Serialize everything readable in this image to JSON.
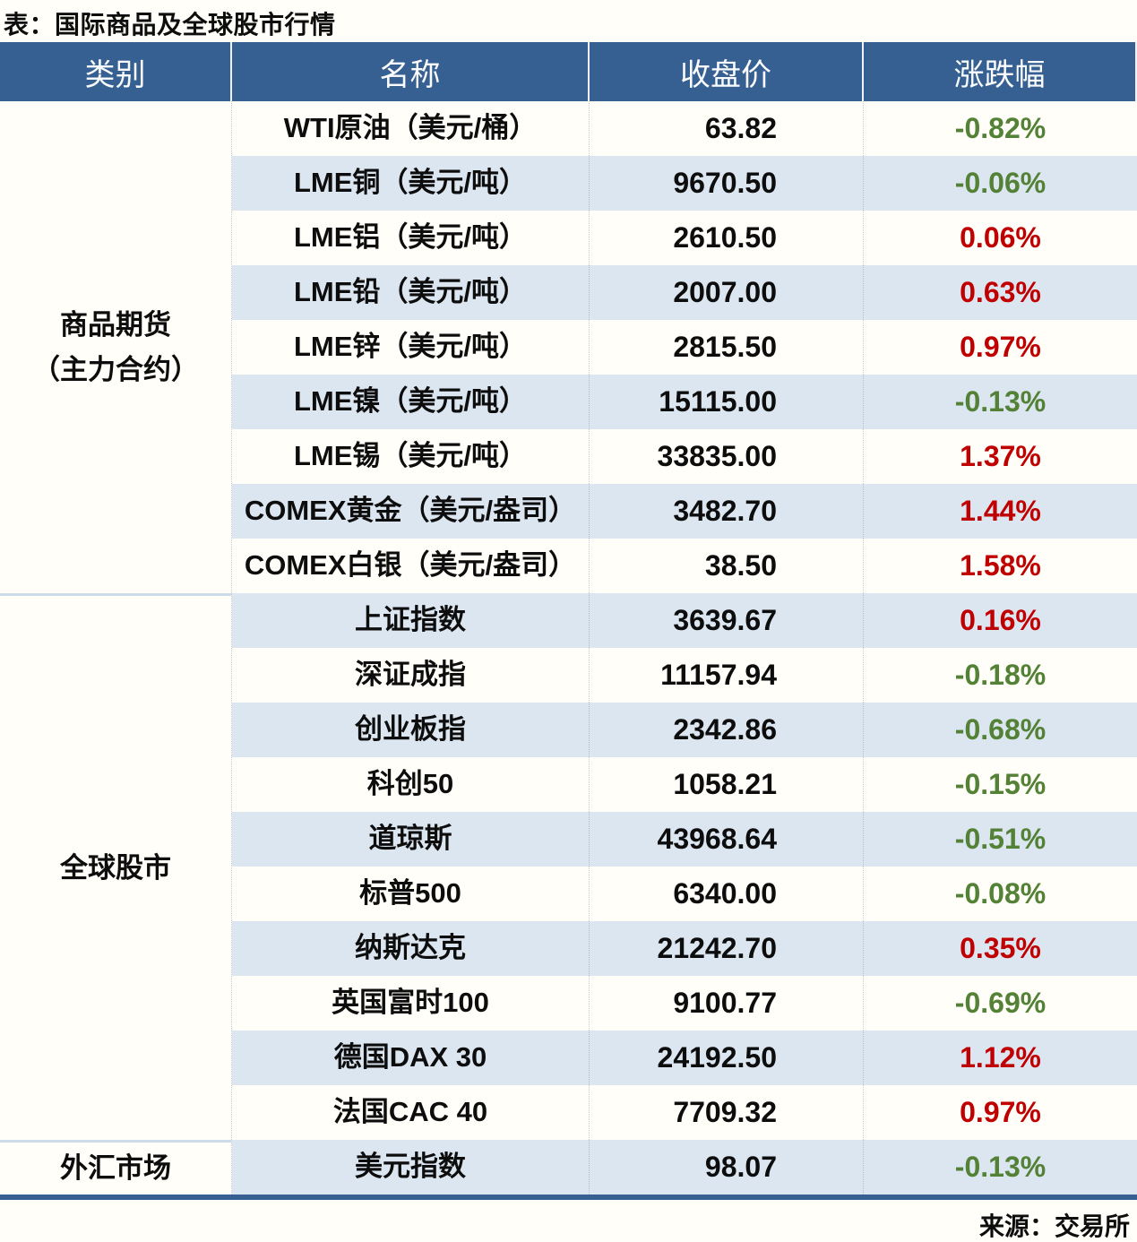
{
  "title": "表：国际商品及全球股市行情",
  "source": "来源：交易所",
  "colors": {
    "header_bg": "#376092",
    "row_alt_bg": "#dce6f1",
    "positive_red": "#c00000",
    "negative_green": "#538135",
    "bottom_rule": "#376092"
  },
  "chart_data": {
    "type": "table",
    "title": "表：国际商品及全球股市行情",
    "columns": [
      "类别",
      "名称",
      "收盘价",
      "涨跌幅"
    ],
    "sections": [
      {
        "category_lines": [
          "商品期货",
          "（主力合约）"
        ],
        "rows": [
          {
            "name": "WTI原油（美元/桶）",
            "close": "63.82",
            "change": "-0.82%"
          },
          {
            "name": "LME铜（美元/吨）",
            "close": "9670.50",
            "change": "-0.06%"
          },
          {
            "name": "LME铝（美元/吨）",
            "close": "2610.50",
            "change": "0.06%"
          },
          {
            "name": "LME铅（美元/吨）",
            "close": "2007.00",
            "change": "0.63%"
          },
          {
            "name": "LME锌（美元/吨）",
            "close": "2815.50",
            "change": "0.97%"
          },
          {
            "name": "LME镍（美元/吨）",
            "close": "15115.00",
            "change": "-0.13%"
          },
          {
            "name": "LME锡（美元/吨）",
            "close": "33835.00",
            "change": "1.37%"
          },
          {
            "name": "COMEX黄金（美元/盎司）",
            "close": "3482.70",
            "change": "1.44%"
          },
          {
            "name": "COMEX白银（美元/盎司）",
            "close": "38.50",
            "change": "1.58%"
          }
        ]
      },
      {
        "category_lines": [
          "全球股市"
        ],
        "rows": [
          {
            "name": "上证指数",
            "close": "3639.67",
            "change": "0.16%"
          },
          {
            "name": "深证成指",
            "close": "11157.94",
            "change": "-0.18%"
          },
          {
            "name": "创业板指",
            "close": "2342.86",
            "change": "-0.68%"
          },
          {
            "name": "科创50",
            "close": "1058.21",
            "change": "-0.15%"
          },
          {
            "name": "道琼斯",
            "close": "43968.64",
            "change": "-0.51%"
          },
          {
            "name": "标普500",
            "close": "6340.00",
            "change": "-0.08%"
          },
          {
            "name": "纳斯达克",
            "close": "21242.70",
            "change": "0.35%"
          },
          {
            "name": "英国富时100",
            "close": "9100.77",
            "change": "-0.69%"
          },
          {
            "name": "德国DAX 30",
            "close": "24192.50",
            "change": "1.12%"
          },
          {
            "name": "法国CAC 40",
            "close": "7709.32",
            "change": "0.97%"
          }
        ]
      },
      {
        "category_lines": [
          "外汇市场"
        ],
        "rows": [
          {
            "name": "美元指数",
            "close": "98.07",
            "change": "-0.13%"
          }
        ]
      }
    ]
  }
}
